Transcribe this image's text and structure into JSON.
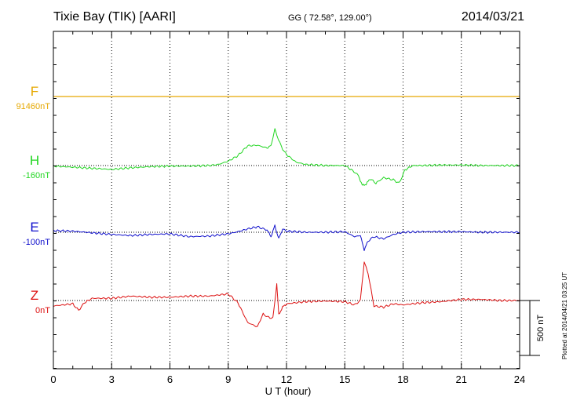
{
  "header": {
    "title": "Tixie Bay (TIK)  [AARI]",
    "coordinates": "GG ( 72.58°, 129.00°)",
    "date": "2014/03/21"
  },
  "footer": {
    "plotted": "Plotted at 2014/04/21 03:25 UT"
  },
  "colors": {
    "F": "#e6a800",
    "H": "#22d622",
    "E": "#1010cc",
    "Z": "#dd1111",
    "axis": "#000000"
  },
  "chart_data": {
    "type": "line",
    "title": "Tixie Bay (TIK)  [AARI]",
    "xlabel": "U T (hour)",
    "xlim": [
      0,
      24
    ],
    "xticks": [
      0,
      3,
      6,
      9,
      12,
      15,
      18,
      21,
      24
    ],
    "scale_bar_label": "500 nT",
    "scale_bar_nT": 500,
    "series": [
      {
        "name": "F",
        "base_label": "91460nT",
        "color": "#e6a800",
        "x": [
          0,
          4,
          8,
          12,
          16,
          20,
          24
        ],
        "values": [
          0,
          0,
          0,
          0,
          0,
          0,
          0
        ]
      },
      {
        "name": "H",
        "base_label": "-160nT",
        "color": "#22d622",
        "x": [
          0,
          1,
          2,
          3,
          4,
          5,
          6,
          7,
          8,
          8.5,
          9,
          9.5,
          10,
          10.5,
          11,
          11.2,
          11.4,
          11.6,
          11.8,
          12,
          12.5,
          13,
          14,
          15,
          15.4,
          15.7,
          15.9,
          16.1,
          16.3,
          16.6,
          17,
          17.5,
          17.8,
          18.1,
          18.5,
          19,
          20,
          21,
          22,
          23,
          24
        ],
        "values": [
          -5,
          -15,
          -25,
          -35,
          -20,
          -10,
          -5,
          -5,
          0,
          10,
          40,
          90,
          180,
          185,
          160,
          180,
          330,
          230,
          150,
          100,
          30,
          10,
          0,
          0,
          -45,
          -90,
          -180,
          -170,
          -120,
          -160,
          -110,
          -130,
          -160,
          -40,
          0,
          0,
          5,
          5,
          0,
          0,
          0
        ]
      },
      {
        "name": "E",
        "base_label": "-100nT",
        "color": "#1010cc",
        "x": [
          0,
          1,
          2,
          3,
          4,
          5,
          6,
          7,
          8,
          9,
          9.5,
          10,
          10.5,
          11,
          11.2,
          11.4,
          11.6,
          11.8,
          12,
          13,
          14,
          15,
          15.5,
          15.8,
          16,
          16.2,
          16.5,
          17,
          17.5,
          18,
          19,
          20,
          21,
          22,
          23,
          24
        ],
        "values": [
          15,
          10,
          -5,
          -20,
          -30,
          -20,
          -15,
          -40,
          -35,
          -15,
          5,
          30,
          50,
          20,
          -40,
          60,
          -60,
          30,
          10,
          0,
          0,
          5,
          -40,
          -30,
          -160,
          -80,
          -40,
          -60,
          -20,
          0,
          5,
          5,
          5,
          0,
          0,
          0
        ]
      },
      {
        "name": "Z",
        "base_label": "0nT",
        "color": "#dd1111",
        "x": [
          0,
          1,
          1.3,
          1.6,
          2,
          3,
          4,
          5,
          6,
          7,
          8,
          9,
          9.5,
          10,
          10.5,
          10.8,
          11,
          11.3,
          11.5,
          11.6,
          11.8,
          12,
          13,
          14,
          15,
          15.5,
          15.8,
          16,
          16.2,
          16.5,
          17,
          17.5,
          18,
          19,
          20,
          21,
          22,
          23,
          24
        ],
        "values": [
          -50,
          -30,
          -90,
          -20,
          20,
          20,
          40,
          30,
          30,
          40,
          40,
          60,
          -20,
          -200,
          -240,
          -120,
          -150,
          -160,
          150,
          -130,
          -60,
          -30,
          -10,
          -5,
          -10,
          -40,
          0,
          350,
          250,
          -50,
          -60,
          -30,
          -40,
          -20,
          -10,
          10,
          10,
          0,
          0
        ]
      }
    ]
  }
}
